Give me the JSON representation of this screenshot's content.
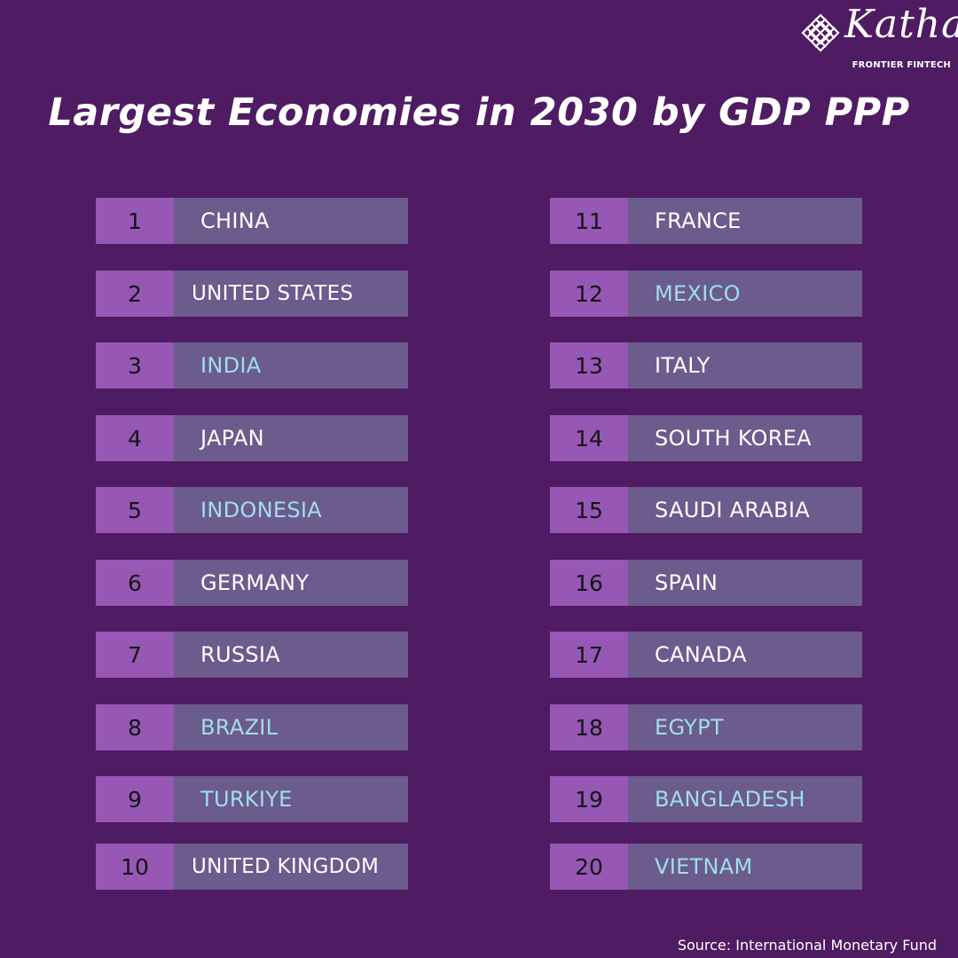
{
  "brand": {
    "name": "Katha",
    "tagline": "FRONTIER FINTECH"
  },
  "title": "Largest Economies in 2030 by GDP PPP",
  "accent_color": "#9fdfe9",
  "rankings": [
    {
      "rank": "1",
      "country": "CHINA",
      "accent": false
    },
    {
      "rank": "2",
      "country": "UNITED STATES",
      "accent": false
    },
    {
      "rank": "3",
      "country": "INDIA",
      "accent": true
    },
    {
      "rank": "4",
      "country": "JAPAN",
      "accent": false
    },
    {
      "rank": "5",
      "country": "INDONESIA",
      "accent": true
    },
    {
      "rank": "6",
      "country": "GERMANY",
      "accent": false
    },
    {
      "rank": "7",
      "country": "RUSSIA",
      "accent": false
    },
    {
      "rank": "8",
      "country": "BRAZIL",
      "accent": true
    },
    {
      "rank": "9",
      "country": "TURKIYE",
      "accent": true
    },
    {
      "rank": "10",
      "country": "UNITED KINGDOM",
      "accent": false
    },
    {
      "rank": "11",
      "country": "FRANCE",
      "accent": false
    },
    {
      "rank": "12",
      "country": "MEXICO",
      "accent": true
    },
    {
      "rank": "13",
      "country": "ITALY",
      "accent": false
    },
    {
      "rank": "14",
      "country": "SOUTH KOREA",
      "accent": false
    },
    {
      "rank": "15",
      "country": "SAUDI ARABIA",
      "accent": false
    },
    {
      "rank": "16",
      "country": "SPAIN",
      "accent": false
    },
    {
      "rank": "17",
      "country": "CANADA",
      "accent": false
    },
    {
      "rank": "18",
      "country": "EGYPT",
      "accent": true
    },
    {
      "rank": "19",
      "country": "BANGLADESH",
      "accent": true
    },
    {
      "rank": "20",
      "country": "VIETNAM",
      "accent": true
    }
  ],
  "source": "Source: International Monetary Fund"
}
